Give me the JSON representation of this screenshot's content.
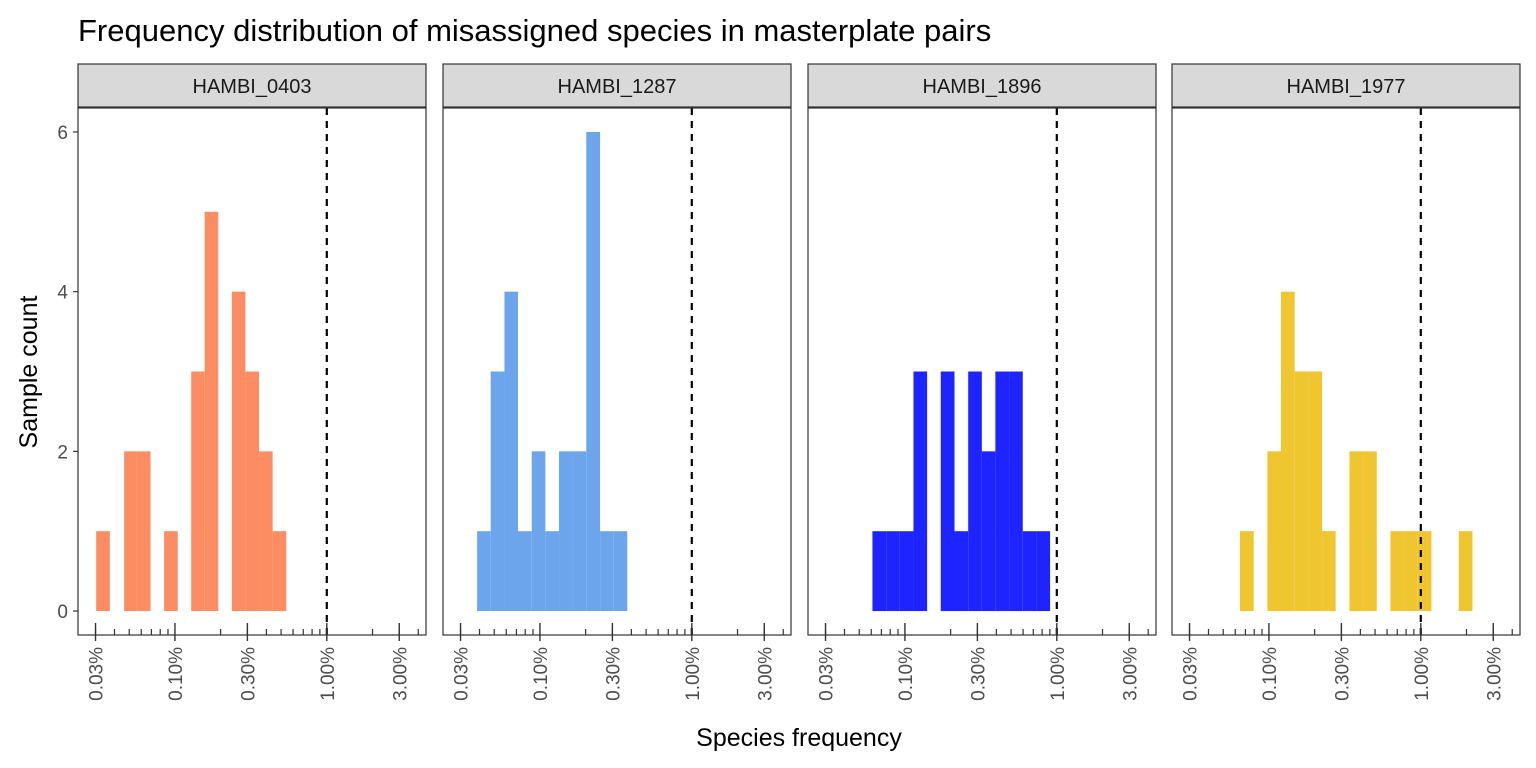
{
  "chart_data": {
    "type": "histogram",
    "title": "Frequency distribution of misassigned species in masterplate pairs",
    "xlabel": "Species frequency",
    "ylabel": "Sample count",
    "x_scale": "log10",
    "x_tick_values": [
      0.0003,
      0.001,
      0.003,
      0.01,
      0.03
    ],
    "x_tick_labels": [
      "0.03%",
      "0.10%",
      "0.30%",
      "1.00%",
      "3.00%"
    ],
    "xlim": [
      0.00023,
      0.045
    ],
    "y_ticks": [
      0,
      2,
      4,
      6
    ],
    "ylim": [
      -0.3,
      6.3
    ],
    "reference_line": {
      "x": 0.01,
      "style": "dashed"
    },
    "grid": false,
    "panels": [
      {
        "name": "HAMBI_0403",
        "color": "#FC8D62",
        "bins": [
          {
            "from": 0.000303,
            "to": 0.000373,
            "count": 1
          },
          {
            "from": 0.000463,
            "to": 0.000562,
            "count": 2
          },
          {
            "from": 0.000562,
            "to": 0.000691,
            "count": 2
          },
          {
            "from": 0.000849,
            "to": 0.001044,
            "count": 1
          },
          {
            "from": 0.00128,
            "to": 0.00157,
            "count": 3
          },
          {
            "from": 0.00157,
            "to": 0.00193,
            "count": 5
          },
          {
            "from": 0.00237,
            "to": 0.00291,
            "count": 4
          },
          {
            "from": 0.00291,
            "to": 0.00358,
            "count": 3
          },
          {
            "from": 0.00358,
            "to": 0.0044,
            "count": 2
          },
          {
            "from": 0.0044,
            "to": 0.00541,
            "count": 1
          }
        ]
      },
      {
        "name": "HAMBI_1287",
        "color": "#6CA5EC",
        "bins": [
          {
            "from": 0.000386,
            "to": 0.000474,
            "count": 1
          },
          {
            "from": 0.000474,
            "to": 0.000584,
            "count": 3
          },
          {
            "from": 0.000584,
            "to": 0.000717,
            "count": 4
          },
          {
            "from": 0.000717,
            "to": 0.000883,
            "count": 1
          },
          {
            "from": 0.000883,
            "to": 0.001086,
            "count": 2
          },
          {
            "from": 0.001086,
            "to": 0.001336,
            "count": 1
          },
          {
            "from": 0.001336,
            "to": 0.00164,
            "count": 2
          },
          {
            "from": 0.00164,
            "to": 0.00202,
            "count": 2
          },
          {
            "from": 0.00202,
            "to": 0.00249,
            "count": 6
          },
          {
            "from": 0.00249,
            "to": 0.00306,
            "count": 1
          },
          {
            "from": 0.00306,
            "to": 0.00376,
            "count": 1
          }
        ]
      },
      {
        "name": "HAMBI_1896",
        "color": "#1E24FF",
        "bins": [
          {
            "from": 0.000611,
            "to": 0.000752,
            "count": 1
          },
          {
            "from": 0.000752,
            "to": 0.000925,
            "count": 1
          },
          {
            "from": 0.000925,
            "to": 0.001138,
            "count": 1
          },
          {
            "from": 0.001138,
            "to": 0.0014,
            "count": 3
          },
          {
            "from": 0.001722,
            "to": 0.00212,
            "count": 3
          },
          {
            "from": 0.00212,
            "to": 0.00261,
            "count": 1
          },
          {
            "from": 0.00261,
            "to": 0.00321,
            "count": 3
          },
          {
            "from": 0.00321,
            "to": 0.00394,
            "count": 2
          },
          {
            "from": 0.00394,
            "to": 0.00485,
            "count": 3
          },
          {
            "from": 0.00485,
            "to": 0.00597,
            "count": 3
          },
          {
            "from": 0.00597,
            "to": 0.00734,
            "count": 1
          },
          {
            "from": 0.00734,
            "to": 0.00903,
            "count": 1
          }
        ]
      },
      {
        "name": "HAMBI_1977",
        "color": "#EFC530",
        "bins": [
          {
            "from": 0.000645,
            "to": 0.000794,
            "count": 1
          },
          {
            "from": 0.000977,
            "to": 0.001201,
            "count": 2
          },
          {
            "from": 0.001201,
            "to": 0.001478,
            "count": 4
          },
          {
            "from": 0.001478,
            "to": 0.001818,
            "count": 3
          },
          {
            "from": 0.001818,
            "to": 0.00224,
            "count": 3
          },
          {
            "from": 0.00224,
            "to": 0.00275,
            "count": 1
          },
          {
            "from": 0.00339,
            "to": 0.00417,
            "count": 2
          },
          {
            "from": 0.00417,
            "to": 0.00513,
            "count": 2
          },
          {
            "from": 0.00631,
            "to": 0.00776,
            "count": 1
          },
          {
            "from": 0.00776,
            "to": 0.00955,
            "count": 1
          },
          {
            "from": 0.00955,
            "to": 0.01175,
            "count": 1
          },
          {
            "from": 0.01778,
            "to": 0.02188,
            "count": 1
          }
        ]
      }
    ]
  }
}
